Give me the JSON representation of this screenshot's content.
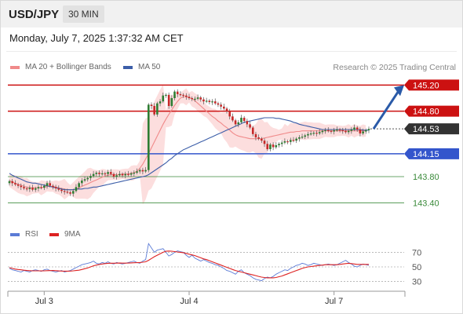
{
  "header": {
    "symbol": "USD/JPY",
    "timeframe": "30 MIN"
  },
  "datetime": "Monday, July 7, 2025 1:37:32 AM CET",
  "copyright": "Research © 2025 Trading Central",
  "legend": {
    "ma20_label": "MA 20 + Bollinger Bands",
    "ma50_label": "MA 50",
    "rsi_label": "RSI",
    "rsi_ma_label": "9MA"
  },
  "colors": {
    "resistance": "#cc1111",
    "support": "#3355cc",
    "minor_support": "#3a8a3a",
    "bull_candle": "#2e7d32",
    "bear_candle": "#c62828",
    "ma20": "#f08a8a",
    "bollinger_fill": "#fbd3d3",
    "ma50": "#3c5ea8",
    "rsi": "#5b7bd6",
    "rsi_ma": "#dd2222",
    "current_price_bg": "#333333",
    "arrow": "#2a5aa8"
  },
  "chart_data": [
    {
      "type": "candlestick",
      "title": "USD/JPY",
      "x_ticks": [
        "Jul 3",
        "Jul 4",
        "Jul 7"
      ],
      "ylim": [
        143.2,
        145.42
      ],
      "levels": [
        {
          "value": 145.2,
          "label": "145.20",
          "kind": "resistance"
        },
        {
          "value": 144.8,
          "label": "144.80",
          "kind": "resistance"
        },
        {
          "value": 144.53,
          "label": "144.53",
          "kind": "current"
        },
        {
          "value": 144.15,
          "label": "144.15",
          "kind": "support"
        },
        {
          "value": 143.8,
          "label": "143.80",
          "kind": "minor_support"
        },
        {
          "value": 143.4,
          "label": "143.40",
          "kind": "minor_support"
        }
      ],
      "forecast_arrow": {
        "from": 144.53,
        "to": 145.2
      },
      "close": [
        143.73,
        143.7,
        143.68,
        143.66,
        143.64,
        143.62,
        143.61,
        143.63,
        143.6,
        143.62,
        143.64,
        143.63,
        143.66,
        143.7,
        143.66,
        143.64,
        143.62,
        143.6,
        143.58,
        143.57,
        143.56,
        143.54,
        143.58,
        143.64,
        143.7,
        143.74,
        143.76,
        143.78,
        143.81,
        143.84,
        143.86,
        143.84,
        143.85,
        143.84,
        143.87,
        143.84,
        143.8,
        143.82,
        143.84,
        143.82,
        143.84,
        143.83,
        143.85,
        143.86,
        143.88,
        143.9,
        143.88,
        143.9,
        144.9,
        144.88,
        144.75,
        144.92,
        144.95,
        145.04,
        145.05,
        144.88,
        145.0,
        145.1,
        145.06,
        145.05,
        145.04,
        145.02,
        145.0,
        144.99,
        144.99,
        145.01,
        144.98,
        144.95,
        144.96,
        144.94,
        144.95,
        144.92,
        144.9,
        144.87,
        144.84,
        144.8,
        144.72,
        144.66,
        144.6,
        144.63,
        144.7,
        144.65,
        144.6,
        144.55,
        144.45,
        144.4,
        144.38,
        144.35,
        144.3,
        144.22,
        144.29,
        144.25,
        144.28,
        144.3,
        144.32,
        144.34,
        144.33,
        144.36,
        144.35,
        144.38,
        144.4,
        144.41,
        144.43,
        144.45,
        144.46,
        144.47,
        144.46,
        144.48,
        144.5,
        144.51,
        144.5,
        144.49,
        144.51,
        144.52,
        144.51,
        144.5,
        144.48,
        144.5,
        144.52,
        144.55,
        144.52,
        144.46,
        144.49,
        144.51,
        144.53
      ],
      "ma20": [
        143.74,
        143.72,
        143.7,
        143.68,
        143.67,
        143.65,
        143.64,
        143.63,
        143.63,
        143.63,
        143.63,
        143.63,
        143.64,
        143.65,
        143.65,
        143.65,
        143.64,
        143.63,
        143.62,
        143.61,
        143.6,
        143.6,
        143.6,
        143.61,
        143.63,
        143.65,
        143.67,
        143.69,
        143.71,
        143.73,
        143.75,
        143.77,
        143.79,
        143.81,
        143.82,
        143.83,
        143.83,
        143.83,
        143.83,
        143.84,
        143.84,
        143.84,
        143.85,
        143.86,
        143.88,
        143.93,
        143.99,
        144.07,
        144.15,
        144.24,
        144.33,
        144.42,
        144.51,
        144.6,
        144.68,
        144.75,
        144.82,
        144.89,
        144.95,
        145.0,
        145.02,
        145.02,
        145.01,
        144.99,
        144.96,
        144.92,
        144.88,
        144.84,
        144.8,
        144.76,
        144.72,
        144.69,
        144.65,
        144.62,
        144.58,
        144.55,
        144.51,
        144.47,
        144.44,
        144.42,
        144.41,
        144.4,
        144.39,
        144.38,
        144.38,
        144.38,
        144.38,
        144.38,
        144.39,
        144.4,
        144.41,
        144.42,
        144.43,
        144.44,
        144.45,
        144.46,
        144.47,
        144.48,
        144.48,
        144.49,
        144.49,
        144.5,
        144.5,
        144.5,
        144.5,
        144.5,
        144.5,
        144.5,
        144.5,
        144.5,
        144.5,
        144.5,
        144.5,
        144.5,
        144.5,
        144.5,
        144.5,
        144.5,
        144.5,
        144.5,
        144.5,
        144.5,
        144.5,
        144.5
      ],
      "ma50": [
        143.85,
        143.82,
        143.8,
        143.78,
        143.76,
        143.74,
        143.72,
        143.71,
        143.7,
        143.7,
        143.69,
        143.68,
        143.67,
        143.66,
        143.65,
        143.64,
        143.63,
        143.62,
        143.61,
        143.6,
        143.6,
        143.6,
        143.6,
        143.61,
        143.61,
        143.61,
        143.62,
        143.62,
        143.63,
        143.64,
        143.64,
        143.65,
        143.66,
        143.67,
        143.68,
        143.69,
        143.7,
        143.71,
        143.72,
        143.73,
        143.74,
        143.75,
        143.76,
        143.77,
        143.78,
        143.79,
        143.8,
        143.81,
        143.83,
        143.86,
        143.89,
        143.92,
        143.95,
        143.98,
        144.01,
        144.05,
        144.08,
        144.12,
        144.15,
        144.18,
        144.21,
        144.23,
        144.25,
        144.27,
        144.29,
        144.31,
        144.33,
        144.35,
        144.37,
        144.39,
        144.41,
        144.43,
        144.45,
        144.47,
        144.49,
        144.51,
        144.53,
        144.55,
        144.57,
        144.59,
        144.61,
        144.63,
        144.64,
        144.65,
        144.66,
        144.67,
        144.68,
        144.69,
        144.7,
        144.7,
        144.7,
        144.7,
        144.69,
        144.69,
        144.68,
        144.67,
        144.66,
        144.65,
        144.63,
        144.62,
        144.6,
        144.59,
        144.58,
        144.57,
        144.56,
        144.55,
        144.54,
        144.53,
        144.52,
        144.52,
        144.52,
        144.52,
        144.52,
        144.52,
        144.52,
        144.52,
        144.52,
        144.52,
        144.52,
        144.52,
        144.52,
        144.52,
        144.51,
        144.51,
        144.51
      ]
    },
    {
      "type": "line",
      "title": "RSI",
      "ylim": [
        22,
        78
      ],
      "y_ticks": [
        70,
        50,
        30
      ],
      "series": [
        {
          "name": "RSI",
          "values": [
            48.0,
            46.0,
            45.0,
            44.0,
            43.0,
            45.0,
            44.0,
            43.0,
            45.0,
            46.0,
            45.0,
            44.0,
            46.0,
            47.0,
            45.0,
            44.0,
            43.0,
            44.0,
            45.0,
            43.0,
            44.0,
            45.0,
            47.0,
            49.0,
            51.0,
            53.0,
            54.0,
            55.0,
            56.0,
            58.0,
            55.0,
            54.0,
            56.0,
            55.0,
            57.0,
            55.0,
            54.0,
            56.0,
            55.0,
            54.0,
            55.0,
            56.0,
            57.0,
            58.0,
            56.0,
            55.0,
            58.0,
            60.0,
            82.0,
            76.0,
            70.0,
            73.0,
            74.0,
            75.0,
            70.0,
            65.0,
            67.0,
            70.0,
            72.0,
            71.0,
            70.0,
            66.0,
            63.0,
            66.0,
            62.0,
            60.0,
            58.0,
            60.0,
            58.0,
            56.0,
            55.0,
            53.0,
            52.0,
            50.0,
            48.0,
            45.0,
            44.0,
            42.0,
            40.0,
            44.0,
            46.0,
            42.0,
            40.0,
            38.0,
            35.0,
            33.0,
            32.0,
            31.0,
            34.0,
            36.0,
            35.0,
            37.0,
            40.0,
            42.0,
            44.0,
            46.0,
            45.0,
            48.0,
            50.0,
            52.0,
            53.0,
            55.0,
            54.0,
            52.0,
            53.0,
            55.0,
            54.0,
            53.0,
            52.0,
            53.0,
            54.0,
            53.0,
            52.0,
            53.0,
            55.0,
            57.0,
            59.0,
            56.0,
            54.0,
            51.0,
            50.0,
            52.0,
            54.0,
            53.0,
            52.0
          ]
        },
        {
          "name": "9MA",
          "values": [
            49.0,
            48.0,
            47.0,
            46.5,
            46.0,
            45.5,
            45.0,
            44.8,
            44.6,
            44.6,
            44.6,
            44.5,
            44.6,
            44.8,
            44.9,
            45.0,
            44.8,
            44.5,
            44.3,
            44.2,
            44.2,
            44.3,
            44.6,
            45.0,
            45.5,
            46.5,
            47.5,
            48.5,
            50.0,
            51.5,
            52.5,
            53.3,
            54.0,
            54.5,
            55.0,
            55.1,
            55.1,
            55.2,
            55.3,
            55.2,
            55.2,
            55.3,
            55.5,
            55.7,
            55.8,
            56.0,
            56.5,
            57.0,
            59.0,
            61.5,
            64.0,
            66.0,
            68.0,
            70.0,
            71.5,
            71.8,
            71.5,
            71.0,
            70.5,
            70.0,
            69.5,
            68.5,
            67.5,
            66.5,
            65.5,
            64.0,
            62.5,
            61.0,
            60.0,
            58.5,
            57.0,
            55.5,
            54.0,
            52.5,
            51.0,
            49.5,
            48.0,
            46.5,
            45.0,
            44.0,
            43.0,
            42.0,
            41.0,
            40.0,
            39.0,
            38.0,
            37.0,
            36.0,
            35.5,
            35.0,
            35.0,
            35.0,
            35.5,
            36.5,
            37.5,
            39.0,
            40.5,
            42.0,
            43.5,
            45.0,
            46.5,
            48.0,
            49.0,
            50.0,
            50.5,
            51.0,
            51.5,
            52.0,
            52.5,
            53.0,
            53.0,
            53.0,
            53.0,
            53.0,
            53.5,
            54.0,
            54.5,
            55.0,
            54.5,
            54.0,
            53.5,
            53.5,
            53.5,
            53.5,
            53.5
          ]
        }
      ]
    }
  ]
}
